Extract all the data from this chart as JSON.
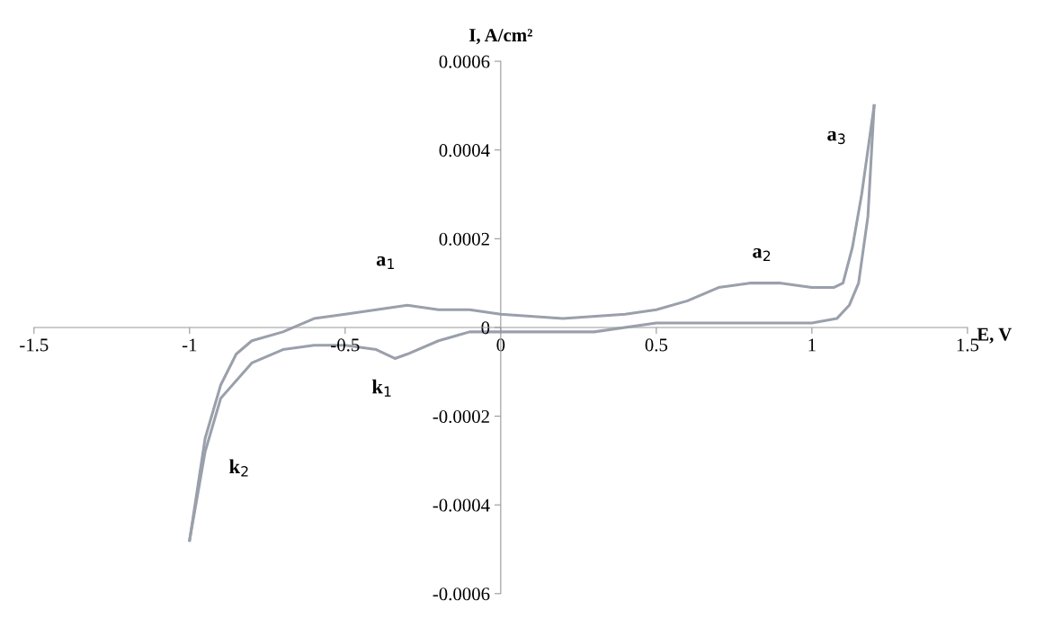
{
  "chart_data": {
    "type": "line",
    "xlabel": "E, V",
    "ylabel": "I, A/cm²",
    "series": [
      {
        "color": "#9aa0ab",
        "x": [
          -1.0,
          -0.95,
          -0.9,
          -0.85,
          -0.8,
          -0.7,
          -0.6,
          -0.5,
          -0.4,
          -0.3,
          -0.2,
          -0.1,
          0,
          0.2,
          0.4,
          0.5,
          0.6,
          0.7,
          0.8,
          0.9,
          1.0,
          1.07,
          1.1,
          1.13,
          1.16,
          1.2
        ],
        "values": [
          -0.00048,
          -0.00025,
          -0.00013,
          -6e-05,
          -3e-05,
          -1e-05,
          2e-05,
          3e-05,
          4e-05,
          5e-05,
          4e-05,
          4e-05,
          3e-05,
          2e-05,
          3e-05,
          4e-05,
          6e-05,
          9e-05,
          0.0001,
          0.0001,
          9e-05,
          9e-05,
          0.0001,
          0.00018,
          0.0003,
          0.0005
        ]
      },
      {
        "color": "#9aa0ab",
        "x": [
          1.2,
          1.18,
          1.15,
          1.12,
          1.08,
          1.0,
          0.8,
          0.5,
          0.3,
          0.2,
          0.1,
          0,
          -0.1,
          -0.2,
          -0.3,
          -0.34,
          -0.4,
          -0.5,
          -0.6,
          -0.7,
          -0.8,
          -0.9,
          -0.95,
          -1.0
        ],
        "values": [
          0.0005,
          0.00025,
          0.0001,
          5e-05,
          2e-05,
          1e-05,
          1e-05,
          1e-05,
          -1e-05,
          -1e-05,
          -1e-05,
          -1e-05,
          -1e-05,
          -3e-05,
          -6e-05,
          -7e-05,
          -5e-05,
          -4e-05,
          -4e-05,
          -5e-05,
          -8e-05,
          -0.00016,
          -0.00028,
          -0.00048
        ]
      }
    ],
    "xlim": [
      -1.5,
      1.5
    ],
    "xticks": [
      -1.5,
      -1,
      -0.5,
      0,
      0.5,
      1,
      1.5
    ],
    "ylim": [
      -0.0006,
      0.0006
    ],
    "yticks": [
      -0.0006,
      -0.0004,
      -0.0002,
      0,
      0.0002,
      0.0004,
      0.0006
    ],
    "annotations": [
      "a$_{1}$",
      "a$_{2}$",
      "a$_{3}$",
      "k$_{1}$",
      "k$_{2}$"
    ]
  }
}
